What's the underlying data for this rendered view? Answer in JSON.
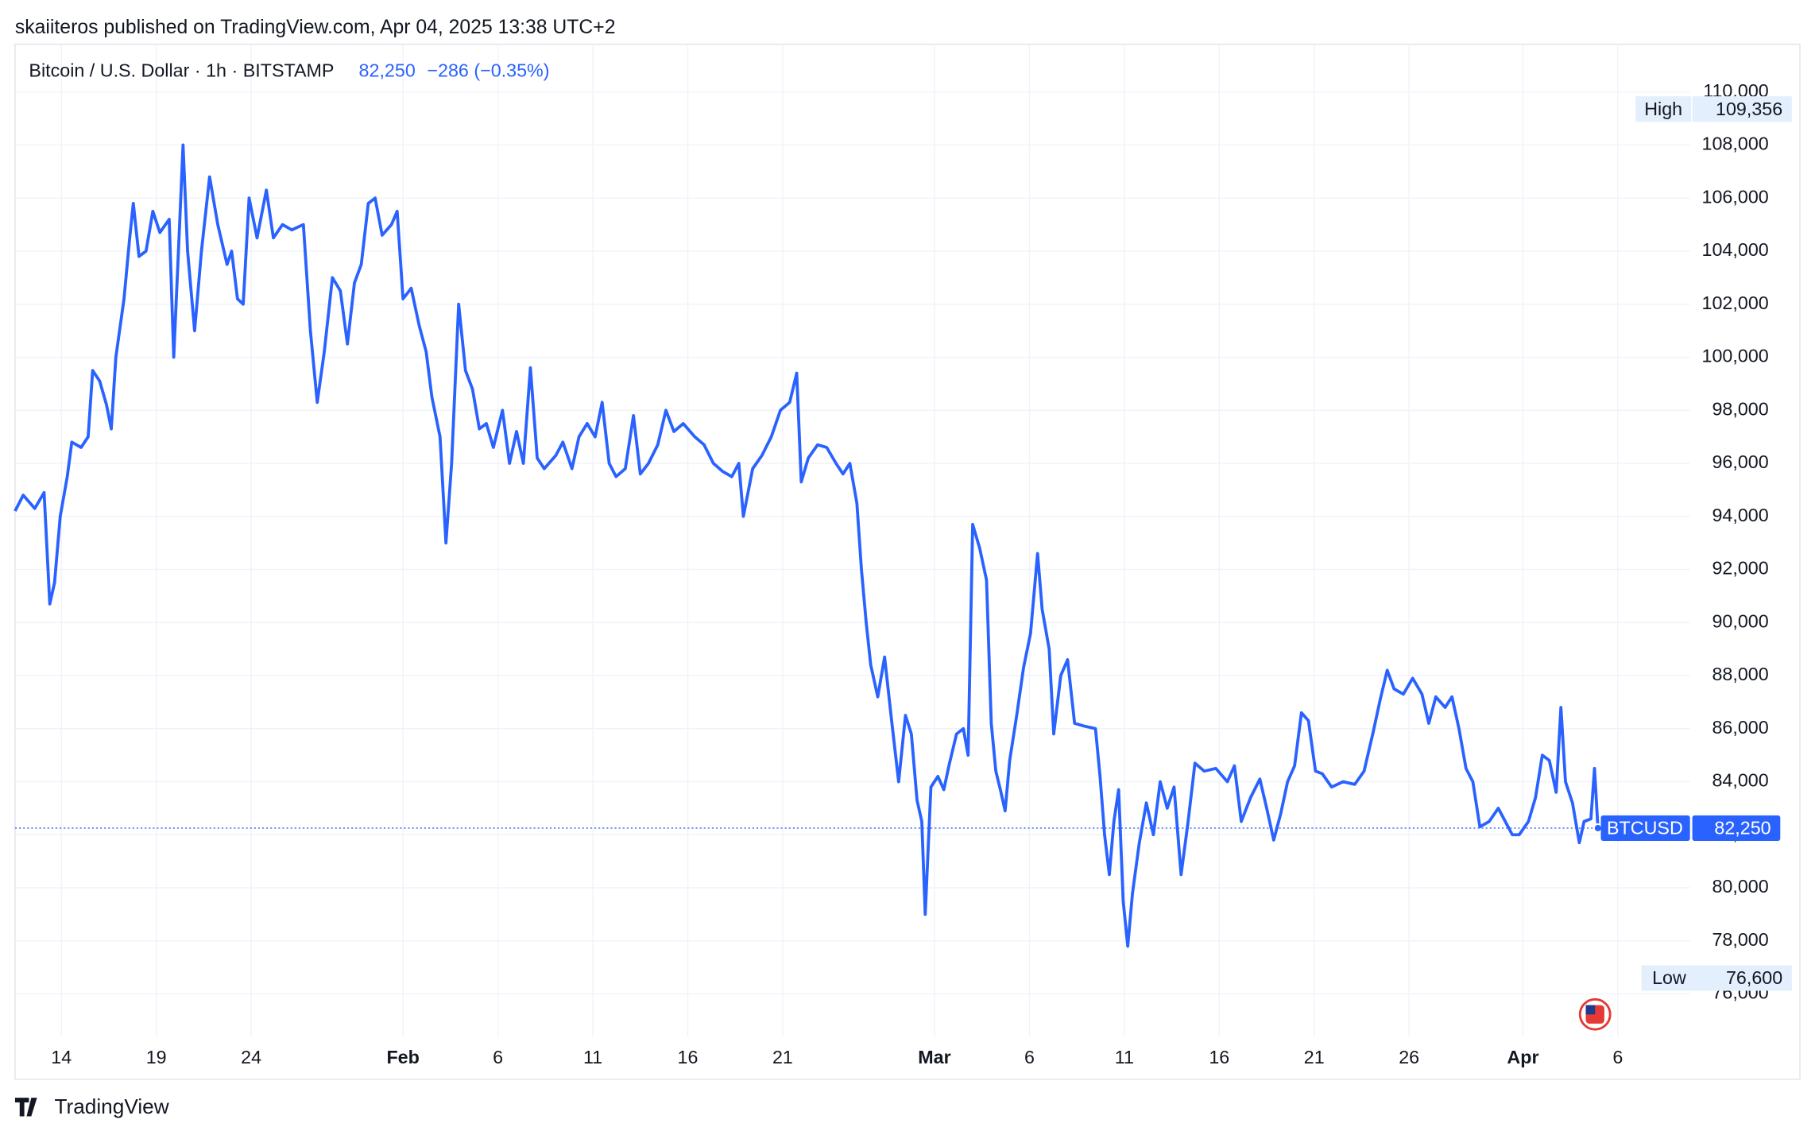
{
  "chart_data": {
    "type": "line",
    "published": "skaiiteros published on TradingView.com, Apr 04, 2025 13:38 UTC+2",
    "title": "Bitcoin / U.S. Dollar · 1h · BITSTAMP",
    "change": "−286 (−0.35%)",
    "brand": "TradingView",
    "symbol": "BTCUSD",
    "high_text": "High",
    "low_text": "Low",
    "high": {
      "value": 109356,
      "label": "109,356"
    },
    "low": {
      "value": 76600,
      "label": "76,600"
    },
    "last": {
      "value": 82250,
      "label": "82,250"
    },
    "grid": true,
    "xlim": [
      11.56,
      99.8
    ],
    "ylim": [
      74400,
      111800
    ],
    "xticks": [
      14,
      19,
      24,
      {
        "value": 32,
        "label": "Feb"
      },
      {
        "value": 37,
        "label": "6"
      },
      {
        "value": 42,
        "label": "11"
      },
      {
        "value": 47,
        "label": "16"
      },
      {
        "value": 52,
        "label": "21"
      },
      {
        "value": 60,
        "label": "Mar"
      },
      {
        "value": 65,
        "label": "6"
      },
      {
        "value": 70,
        "label": "11"
      },
      {
        "value": 75,
        "label": "16"
      },
      {
        "value": 80,
        "label": "21"
      },
      {
        "value": 85,
        "label": "26"
      },
      {
        "value": 91,
        "label": "Apr"
      },
      {
        "value": 96,
        "label": "6"
      }
    ],
    "yticks": [
      {
        "value": 76000,
        "label": "76,000"
      },
      {
        "value": 78000,
        "label": "78,000"
      },
      {
        "value": 80000,
        "label": "80,000"
      },
      {
        "value": 82000,
        "label": "82,000"
      },
      {
        "value": 84000,
        "label": "84,000"
      },
      {
        "value": 86000,
        "label": "86,000"
      },
      {
        "value": 88000,
        "label": "88,000"
      },
      {
        "value": 90000,
        "label": "90,000"
      },
      {
        "value": 92000,
        "label": "92,000"
      },
      {
        "value": 94000,
        "label": "94,000"
      },
      {
        "value": 96000,
        "label": "96,000"
      },
      {
        "value": 98000,
        "label": "98,000"
      },
      {
        "value": 100000,
        "label": "100,000"
      },
      {
        "value": 102000,
        "label": "102,000"
      },
      {
        "value": 104000,
        "label": "104,000"
      },
      {
        "value": 106000,
        "label": "106,000"
      },
      {
        "value": 108000,
        "label": "108,000"
      },
      {
        "value": 110000,
        "label": "110,000"
      }
    ],
    "x": [
      11.56,
      11.99,
      12.6,
      13.09,
      13.39,
      13.64,
      13.94,
      14.31,
      14.55,
      15.04,
      15.41,
      15.65,
      16.02,
      16.38,
      16.63,
      16.87,
      17.3,
      17.6,
      17.79,
      18.09,
      18.46,
      18.82,
      19.19,
      19.68,
      19.92,
      20.23,
      20.41,
      20.65,
      21.02,
      21.38,
      21.81,
      22.24,
      22.73,
      22.97,
      23.28,
      23.58,
      23.89,
      24.31,
      24.8,
      25.17,
      25.65,
      26.14,
      26.75,
      27.12,
      27.48,
      27.85,
      28.28,
      28.7,
      29.07,
      29.44,
      29.8,
      30.17,
      30.53,
      30.9,
      31.39,
      31.69,
      32.0,
      32.43,
      32.85,
      33.22,
      33.52,
      33.95,
      34.26,
      34.56,
      34.93,
      35.29,
      35.66,
      36.02,
      36.39,
      36.76,
      37.24,
      37.61,
      37.98,
      38.34,
      38.71,
      39.07,
      39.44,
      40.05,
      40.42,
      40.9,
      41.27,
      41.7,
      42.12,
      42.49,
      42.86,
      43.22,
      43.71,
      44.14,
      44.5,
      44.93,
      45.42,
      45.85,
      46.27,
      46.76,
      47.37,
      47.86,
      48.35,
      48.83,
      49.32,
      49.69,
      49.93,
      50.42,
      50.91,
      51.4,
      51.88,
      52.37,
      52.74,
      52.98,
      53.35,
      53.84,
      54.32,
      54.81,
      55.18,
      55.54,
      55.91,
      56.15,
      56.4,
      56.64,
      57.01,
      57.37,
      57.74,
      58.11,
      58.47,
      58.78,
      59.08,
      59.33,
      59.51,
      59.81,
      60.18,
      60.49,
      60.79,
      61.16,
      61.52,
      61.77,
      62.01,
      62.38,
      62.74,
      62.99,
      63.23,
      63.47,
      63.72,
      63.96,
      64.33,
      64.69,
      65.06,
      65.43,
      65.67,
      66.04,
      66.28,
      66.65,
      67.01,
      67.38,
      67.87,
      68.48,
      68.72,
      68.96,
      69.21,
      69.45,
      69.7,
      69.94,
      70.18,
      70.43,
      70.79,
      71.16,
      71.53,
      71.89,
      72.26,
      72.62,
      72.99,
      73.36,
      73.72,
      74.21,
      74.82,
      75.43,
      75.8,
      76.16,
      76.65,
      77.14,
      77.5,
      77.87,
      78.24,
      78.6,
      78.97,
      79.33,
      79.7,
      80.07,
      80.43,
      80.92,
      81.53,
      82.14,
      82.63,
      83.12,
      83.48,
      83.85,
      84.21,
      84.7,
      85.19,
      85.68,
      86.04,
      86.41,
      86.9,
      87.26,
      87.63,
      88.0,
      88.36,
      88.73,
      89.22,
      89.7,
      90.07,
      90.44,
      90.8,
      91.29,
      91.66,
      92.02,
      92.39,
      92.75,
      93.0,
      93.24,
      93.61,
      93.97,
      94.22,
      94.58,
      94.77,
      94.95
    ],
    "series": [
      {
        "name": "BTCUSD",
        "color": "#2962ff",
        "values": [
          94200,
          94800,
          94300,
          94900,
          90700,
          91500,
          94000,
          95500,
          96800,
          96600,
          97000,
          99500,
          99100,
          98200,
          97300,
          100000,
          102200,
          104500,
          105800,
          103800,
          104000,
          105500,
          104700,
          105200,
          100000,
          105000,
          108000,
          104000,
          101000,
          104000,
          106800,
          105000,
          103500,
          104000,
          102200,
          102000,
          106000,
          104500,
          106300,
          104500,
          105000,
          104800,
          105000,
          101000,
          98300,
          100200,
          103000,
          102500,
          100500,
          102800,
          103500,
          105800,
          106000,
          104600,
          105000,
          105500,
          102200,
          102600,
          101200,
          100200,
          98500,
          97000,
          93000,
          96000,
          102000,
          99500,
          98800,
          97300,
          97500,
          96600,
          98000,
          96000,
          97200,
          96000,
          99600,
          96200,
          95800,
          96300,
          96800,
          95800,
          97000,
          97500,
          97000,
          98300,
          96000,
          95500,
          95800,
          97800,
          95600,
          96000,
          96700,
          98000,
          97200,
          97500,
          97000,
          96700,
          96000,
          95700,
          95500,
          96000,
          94000,
          95800,
          96300,
          97000,
          98000,
          98300,
          99400,
          95300,
          96200,
          96700,
          96600,
          96000,
          95600,
          96000,
          94500,
          92000,
          90000,
          88400,
          87200,
          88700,
          86300,
          84000,
          86500,
          85800,
          83300,
          82500,
          79000,
          83800,
          84200,
          83700,
          84700,
          85800,
          86000,
          85000,
          93700,
          92800,
          91600,
          86200,
          84400,
          83700,
          82900,
          84800,
          86500,
          88300,
          89600,
          92600,
          90500,
          89000,
          85800,
          88000,
          88600,
          86200,
          86100,
          86000,
          84200,
          82000,
          80500,
          82500,
          83700,
          79500,
          77800,
          79800,
          81700,
          83200,
          82000,
          84000,
          83000,
          83800,
          80500,
          82500,
          84700,
          84400,
          84500,
          84000,
          84600,
          82500,
          83400,
          84100,
          83000,
          81800,
          82800,
          84000,
          84600,
          86600,
          86300,
          84400,
          84300,
          83800,
          84000,
          83900,
          84400,
          85900,
          87100,
          88200,
          87500,
          87300,
          87900,
          87300,
          86200,
          87200,
          86800,
          87200,
          86000,
          84500,
          84000,
          82300,
          82500,
          83000,
          82500,
          82000,
          82000,
          82500,
          83400,
          85000,
          84800,
          83600,
          86800,
          84000,
          83200,
          81700,
          82500,
          82600,
          84500,
          82250
        ]
      }
    ]
  }
}
